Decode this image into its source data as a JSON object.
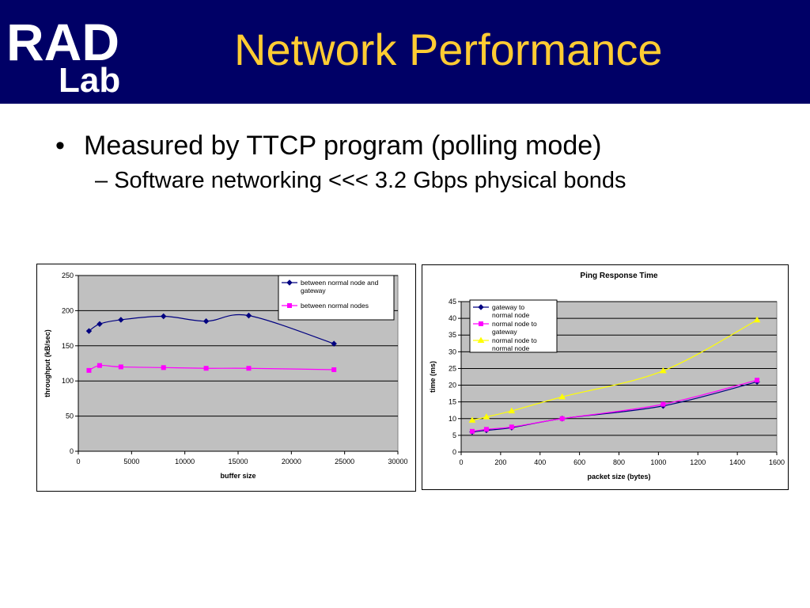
{
  "logo": {
    "line1": "RAD",
    "line2": "Lab"
  },
  "slide_title": "Network Performance",
  "bullets": {
    "main": "Measured by TTCP program (polling mode)",
    "sub": "Software networking <<< 3.2 Gbps physical bonds",
    "main_marker": "•",
    "sub_marker": "–"
  },
  "colors": {
    "header_bg": "#000066",
    "title": "#ffcc33",
    "plot_bg": "#c0c0c0",
    "series_navy": "#000080",
    "series_magenta": "#ff00ff",
    "series_yellow": "#ffff00"
  },
  "chart_data": [
    {
      "type": "line",
      "title": "",
      "xlabel": "buffer size",
      "ylabel": "throughput (kB/sec)",
      "xlim": [
        0,
        30000
      ],
      "ylim": [
        0,
        250
      ],
      "xticks": [
        "0",
        "5000",
        "10000",
        "15000",
        "20000",
        "25000",
        "30000"
      ],
      "yticks": [
        "0",
        "50",
        "100",
        "150",
        "200",
        "250"
      ],
      "grid": true,
      "legend": "top-right",
      "series": [
        {
          "name": "between normal node and gateway",
          "color": "#000080",
          "marker": "diamond",
          "x": [
            1000,
            2000,
            4000,
            8000,
            12000,
            16000,
            24000
          ],
          "y": [
            171,
            181,
            187,
            192,
            185,
            193,
            153
          ]
        },
        {
          "name": "between normal nodes",
          "color": "#ff00ff",
          "marker": "square",
          "x": [
            1000,
            2000,
            4000,
            8000,
            12000,
            16000,
            24000
          ],
          "y": [
            115,
            122,
            120,
            119,
            118,
            118,
            116
          ]
        }
      ]
    },
    {
      "type": "line",
      "title": "Ping Response Time",
      "xlabel": "packet size (bytes)",
      "ylabel": "time (ms)",
      "xlim": [
        0,
        1600
      ],
      "ylim": [
        0,
        45
      ],
      "xticks": [
        "0",
        "200",
        "400",
        "600",
        "800",
        "1000",
        "1200",
        "1400",
        "1600"
      ],
      "yticks": [
        "0",
        "5",
        "10",
        "15",
        "20",
        "25",
        "30",
        "35",
        "40",
        "45"
      ],
      "grid": true,
      "legend": "top-left",
      "series": [
        {
          "name": "gateway to normal node",
          "color": "#000080",
          "marker": "diamond",
          "x": [
            56,
            128,
            256,
            512,
            1024,
            1500
          ],
          "y": [
            6,
            6.5,
            7.3,
            10,
            13.8,
            21
          ]
        },
        {
          "name": "normal node to gateway",
          "color": "#ff00ff",
          "marker": "square",
          "x": [
            56,
            128,
            256,
            512,
            1024,
            1500
          ],
          "y": [
            6.2,
            6.8,
            7.5,
            10,
            14.3,
            21.5
          ]
        },
        {
          "name": "normal node to normal node",
          "color": "#ffff00",
          "marker": "triangle",
          "x": [
            56,
            128,
            256,
            512,
            1024,
            1500
          ],
          "y": [
            9.5,
            10.5,
            12.3,
            16.5,
            24.3,
            39.5
          ]
        }
      ]
    }
  ]
}
